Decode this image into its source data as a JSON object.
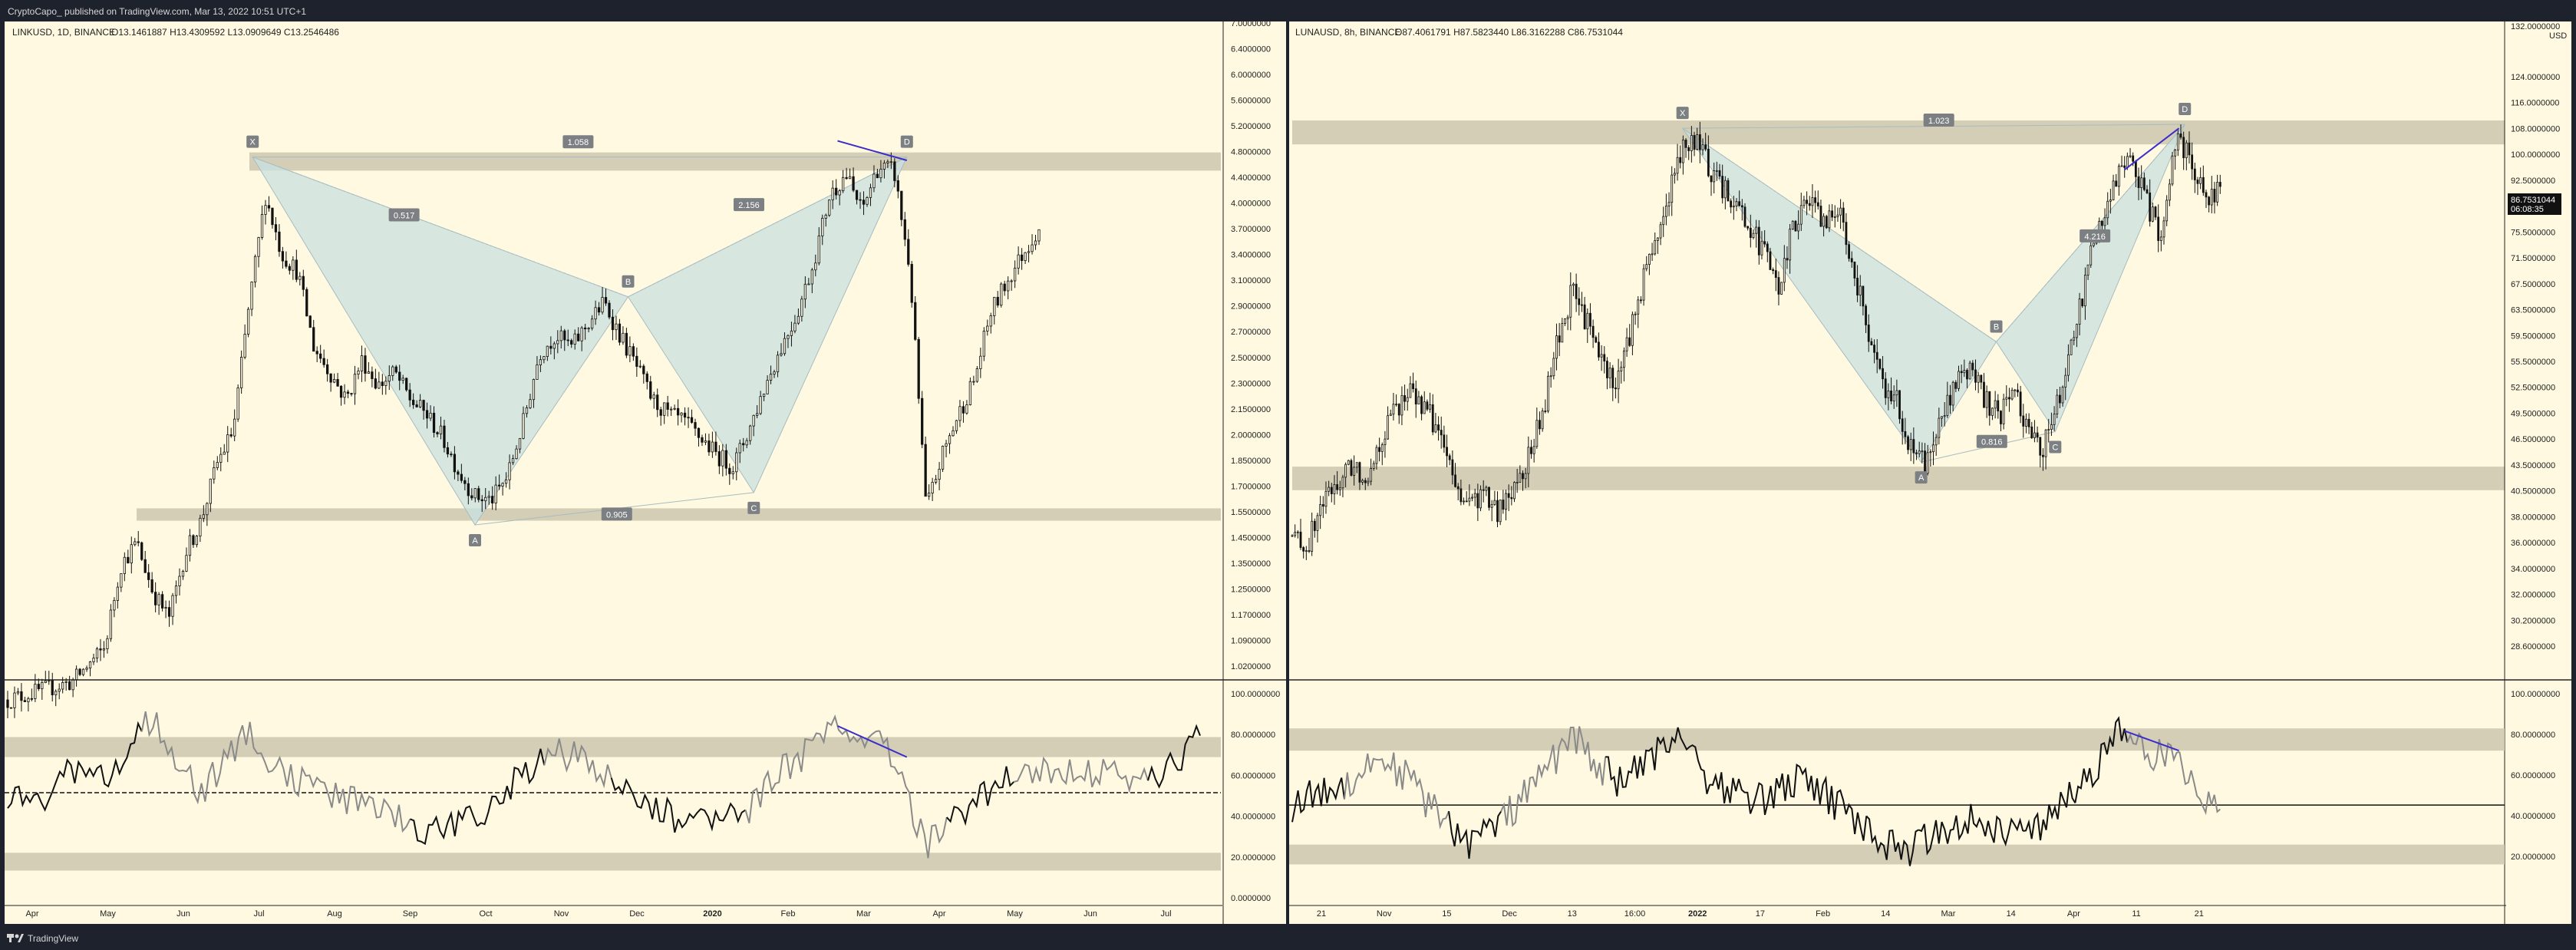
{
  "header": {
    "publisher_line": "CryptoCapo_ published on TradingView.com, Mar 13, 2022 10:51 UTC+1"
  },
  "footer": {
    "brand": "TradingView",
    "logo_icon": "tradingview-logo-icon"
  },
  "colors": {
    "background": "#fef9e0",
    "frame": "#1e222d",
    "candle": "#111111",
    "zone": "#cfc9b2",
    "pattern_fill": "#c9e0e0",
    "pattern_line": "#a8bcc0",
    "divergence": "#3a2ec9",
    "rsi_line": "#111111",
    "rsi_line_alt": "#8a8a8a"
  },
  "charts": [
    {
      "id": "link",
      "info": {
        "symbol": "LINKUSD, 1D, BINANCE",
        "ohlc": "O13.1461887  H13.4309592  L13.0909649  C13.2546486"
      },
      "chart_data": {
        "type": "candlestick",
        "title": "LINKUSD, 1D, BINANCE",
        "scale": "log",
        "ylim": [
          0.91,
          7.3
        ],
        "y_tick_labels": [
          "7.0000000",
          "6.4000000",
          "6.0000000",
          "5.6000000",
          "5.2000000",
          "4.8000000",
          "4.4000000",
          "4.0000000",
          "3.7000000",
          "3.4000000",
          "3.1000000",
          "2.9000000",
          "2.7000000",
          "2.5000000",
          "2.3000000",
          "2.1500000",
          "2.0000000",
          "1.8500000",
          "1.7000000",
          "1.5500000",
          "1.4500000",
          "1.3500000",
          "1.2500000",
          "1.1700000",
          "1.0900000",
          "1.0200000"
        ],
        "x_tick_labels": [
          "Apr",
          "May",
          "Jun",
          "Jul",
          "Aug",
          "Sep",
          "Oct",
          "Nov",
          "Dec",
          "2020",
          "Feb",
          "Mar",
          "Apr",
          "May",
          "Jun",
          "Jul"
        ],
        "price_path": [
          [
            0,
            0.85
          ],
          [
            4,
            0.9
          ],
          [
            6,
            1.0
          ],
          [
            7,
            1.3
          ],
          [
            8,
            1.4
          ],
          [
            9,
            1.2
          ],
          [
            10,
            1.1
          ],
          [
            11,
            1.35
          ],
          [
            12,
            1.5
          ],
          [
            13,
            1.8
          ],
          [
            14,
            2.0
          ],
          [
            15,
            3.0
          ],
          [
            16,
            4.2
          ],
          [
            17,
            3.5
          ],
          [
            18,
            3.3
          ],
          [
            19,
            2.6
          ],
          [
            20,
            2.4
          ],
          [
            21,
            2.2
          ],
          [
            22,
            2.5
          ],
          [
            23,
            2.3
          ],
          [
            24,
            2.4
          ],
          [
            25,
            2.2
          ],
          [
            26,
            2.1
          ],
          [
            27,
            1.95
          ],
          [
            28,
            1.75
          ],
          [
            29,
            1.62
          ],
          [
            30,
            1.6
          ],
          [
            31,
            1.72
          ],
          [
            32,
            2.05
          ],
          [
            33,
            2.55
          ],
          [
            34,
            2.7
          ],
          [
            35,
            2.6
          ],
          [
            36,
            2.8
          ],
          [
            37,
            3.0
          ],
          [
            38,
            2.7
          ],
          [
            39,
            2.45
          ],
          [
            40,
            2.2
          ],
          [
            41,
            2.1
          ],
          [
            42,
            2.05
          ],
          [
            43,
            1.95
          ],
          [
            44,
            1.85
          ],
          [
            45,
            1.78
          ],
          [
            46,
            2.0
          ],
          [
            47,
            2.3
          ],
          [
            48,
            2.6
          ],
          [
            49,
            2.9
          ],
          [
            50,
            3.4
          ],
          [
            51,
            4.2
          ],
          [
            52,
            4.5
          ],
          [
            53,
            4.0
          ],
          [
            54,
            4.6
          ],
          [
            55,
            4.55
          ],
          [
            56,
            3.3
          ],
          [
            57,
            1.55
          ],
          [
            58,
            1.85
          ],
          [
            59,
            2.1
          ],
          [
            60,
            2.35
          ],
          [
            61,
            2.9
          ],
          [
            62,
            3.2
          ],
          [
            63,
            3.5
          ],
          [
            64,
            3.8
          ]
        ],
        "harmonic_pattern": {
          "points": [
            {
              "label": "X",
              "t": 15.2,
              "price": 4.75
            },
            {
              "label": "A",
              "t": 29.0,
              "price": 1.48
            },
            {
              "label": "B",
              "t": 38.5,
              "price": 3.05
            },
            {
              "label": "C",
              "t": 46.3,
              "price": 1.64
            },
            {
              "label": "D",
              "t": 55.8,
              "price": 4.75
            }
          ],
          "ratios": [
            {
              "label": "1.058",
              "t": 35.4,
              "price": 4.98
            },
            {
              "label": "0.517",
              "t": 24.6,
              "price": 3.95
            },
            {
              "label": "2.156",
              "t": 46.0,
              "price": 4.08
            },
            {
              "label": "0.905",
              "t": 37.8,
              "price": 1.53
            }
          ]
        },
        "zones": [
          {
            "price_low": 4.55,
            "price_high": 4.82
          },
          {
            "price_low": 1.5,
            "price_high": 1.56
          }
        ],
        "divergence": [
          [
            51.5,
            5.0
          ],
          [
            55.8,
            4.7
          ]
        ],
        "rsi": {
          "y_tick_labels": [
            "100.0000000",
            "80.0000000",
            "60.0000000",
            "40.0000000",
            "20.0000000",
            "0.0000000"
          ],
          "ylim": [
            0,
            100
          ],
          "zones": [
            [
              66,
              75
            ],
            [
              15,
              23
            ]
          ],
          "midline": 50,
          "values": [
            [
              0,
              50
            ],
            [
              2,
              45
            ],
            [
              4,
              60
            ],
            [
              6,
              55
            ],
            [
              8,
              75
            ],
            [
              9,
              85
            ],
            [
              10,
              70
            ],
            [
              12,
              50
            ],
            [
              14,
              70
            ],
            [
              15,
              80
            ],
            [
              16,
              65
            ],
            [
              18,
              55
            ],
            [
              20,
              50
            ],
            [
              22,
              45
            ],
            [
              24,
              40
            ],
            [
              26,
              32
            ],
            [
              28,
              35
            ],
            [
              30,
              42
            ],
            [
              32,
              60
            ],
            [
              34,
              68
            ],
            [
              36,
              65
            ],
            [
              38,
              55
            ],
            [
              40,
              45
            ],
            [
              42,
              35
            ],
            [
              44,
              40
            ],
            [
              46,
              42
            ],
            [
              48,
              60
            ],
            [
              50,
              70
            ],
            [
              51,
              80
            ],
            [
              53,
              75
            ],
            [
              55,
              68
            ],
            [
              56,
              45
            ],
            [
              57,
              25
            ],
            [
              58,
              35
            ],
            [
              60,
              45
            ],
            [
              62,
              55
            ],
            [
              64,
              62
            ],
            [
              66,
              58
            ],
            [
              68,
              60
            ],
            [
              70,
              55
            ],
            [
              72,
              60
            ],
            [
              74,
              75
            ]
          ],
          "divergence": [
            [
              51.5,
              80
            ],
            [
              55.8,
              66
            ]
          ]
        }
      },
      "x_range": [
        0,
        75
      ]
    },
    {
      "id": "luna",
      "info": {
        "symbol": "LUNAUSD, 8h, BINANCE",
        "ohlc": "O87.4061791  H87.5823440  L86.3162288  C86.7531044"
      },
      "chart_data": {
        "type": "candlestick",
        "title": "LUNAUSD, 8h, BINANCE",
        "scale": "log",
        "ylim": [
          26,
          133
        ],
        "top_tick": "132.0000000",
        "currency": "USD",
        "last_price": "86.7531044",
        "countdown": "06:08:35",
        "y_tick_labels": [
          "124.0000000",
          "116.0000000",
          "108.0000000",
          "100.0000000",
          "92.5000000",
          "81.5000000",
          "75.5000000",
          "71.5000000",
          "67.5000000",
          "63.5000000",
          "59.5000000",
          "55.5000000",
          "52.5000000",
          "49.5000000",
          "46.5000000",
          "43.5000000",
          "40.5000000",
          "38.0000000",
          "36.0000000",
          "34.0000000",
          "32.0000000",
          "30.2000000",
          "28.6000000"
        ],
        "x_tick_labels": [
          "21",
          "Nov",
          "15",
          "Dec",
          "13",
          "16:00",
          "2022",
          "17",
          "Feb",
          "14",
          "Mar",
          "14",
          "Apr",
          "11",
          "21"
        ],
        "price_path": [
          [
            0,
            37
          ],
          [
            1,
            36
          ],
          [
            2,
            40
          ],
          [
            3,
            42
          ],
          [
            4,
            44
          ],
          [
            5,
            43
          ],
          [
            6,
            47
          ],
          [
            7,
            51
          ],
          [
            8,
            53
          ],
          [
            9,
            51
          ],
          [
            10,
            48
          ],
          [
            11,
            42
          ],
          [
            12,
            40
          ],
          [
            13,
            41
          ],
          [
            14,
            39
          ],
          [
            15,
            42
          ],
          [
            16,
            45
          ],
          [
            17,
            50
          ],
          [
            18,
            60
          ],
          [
            19,
            68
          ],
          [
            20,
            63
          ],
          [
            21,
            57
          ],
          [
            22,
            54
          ],
          [
            23,
            62
          ],
          [
            24,
            72
          ],
          [
            25,
            80
          ],
          [
            26,
            92
          ],
          [
            27,
            100
          ],
          [
            28,
            95
          ],
          [
            29,
            88
          ],
          [
            30,
            86
          ],
          [
            31,
            80
          ],
          [
            32,
            75
          ],
          [
            33,
            68
          ],
          [
            34,
            80
          ],
          [
            35,
            86
          ],
          [
            36,
            80
          ],
          [
            37,
            84
          ],
          [
            38,
            74
          ],
          [
            39,
            62
          ],
          [
            40,
            54
          ],
          [
            41,
            52
          ],
          [
            42,
            46
          ],
          [
            43,
            44
          ],
          [
            44,
            50
          ],
          [
            45,
            54
          ],
          [
            46,
            56
          ],
          [
            47,
            52
          ],
          [
            48,
            50
          ],
          [
            49,
            54
          ],
          [
            50,
            48
          ],
          [
            51,
            46
          ],
          [
            52,
            52
          ],
          [
            53,
            60
          ],
          [
            54,
            72
          ],
          [
            55,
            82
          ],
          [
            56,
            90
          ],
          [
            57,
            95
          ],
          [
            58,
            85
          ],
          [
            59,
            78
          ],
          [
            60,
            100
          ],
          [
            61,
            95
          ],
          [
            62,
            86
          ],
          [
            63,
            87
          ]
        ],
        "harmonic_pattern": {
          "points": [
            {
              "label": "X",
              "t": 26.5,
              "price": 102
            },
            {
              "label": "A",
              "t": 42.7,
              "price": 44.5
            },
            {
              "label": "B",
              "t": 47.8,
              "price": 60
            },
            {
              "label": "C",
              "t": 51.8,
              "price": 48
            },
            {
              "label": "D",
              "t": 60.6,
              "price": 103
            }
          ],
          "ratios": [
            {
              "label": "1.023",
              "t": 43.9,
              "price": 104
            },
            {
              "label": "4.216",
              "t": 54.5,
              "price": 78
            },
            {
              "label": "0.816",
              "t": 47.5,
              "price": 46.8
            }
          ]
        },
        "zones": [
          {
            "price_low": 98,
            "price_high": 104
          },
          {
            "price_low": 41.5,
            "price_high": 44
          }
        ],
        "divergence": [
          [
            56.5,
            92
          ],
          [
            60.2,
            102
          ]
        ],
        "rsi": {
          "y_tick_labels": [
            "100.0000000",
            "80.0000000",
            "60.0000000",
            "40.0000000",
            "20.0000000"
          ],
          "ylim": [
            10,
            100
          ],
          "zones": [
            [
              72,
              81
            ],
            [
              26,
              34
            ]
          ],
          "midline": 50,
          "values": [
            [
              0,
              50
            ],
            [
              2,
              55
            ],
            [
              4,
              60
            ],
            [
              6,
              70
            ],
            [
              8,
              60
            ],
            [
              10,
              45
            ],
            [
              12,
              35
            ],
            [
              14,
              42
            ],
            [
              16,
              55
            ],
            [
              18,
              70
            ],
            [
              19,
              80
            ],
            [
              20,
              70
            ],
            [
              22,
              60
            ],
            [
              24,
              65
            ],
            [
              26,
              80
            ],
            [
              27,
              75
            ],
            [
              28,
              62
            ],
            [
              30,
              55
            ],
            [
              32,
              52
            ],
            [
              34,
              60
            ],
            [
              36,
              55
            ],
            [
              38,
              45
            ],
            [
              40,
              35
            ],
            [
              42,
              32
            ],
            [
              44,
              40
            ],
            [
              46,
              45
            ],
            [
              48,
              40
            ],
            [
              50,
              38
            ],
            [
              52,
              48
            ],
            [
              54,
              60
            ],
            [
              55,
              70
            ],
            [
              56,
              80
            ],
            [
              58,
              70
            ],
            [
              60,
              70
            ],
            [
              61,
              60
            ],
            [
              62,
              50
            ],
            [
              63,
              49
            ]
          ],
          "divergence": [
            [
              56.5,
              80
            ],
            [
              60.2,
              72
            ]
          ]
        }
      },
      "x_range": [
        0,
        82
      ]
    }
  ]
}
